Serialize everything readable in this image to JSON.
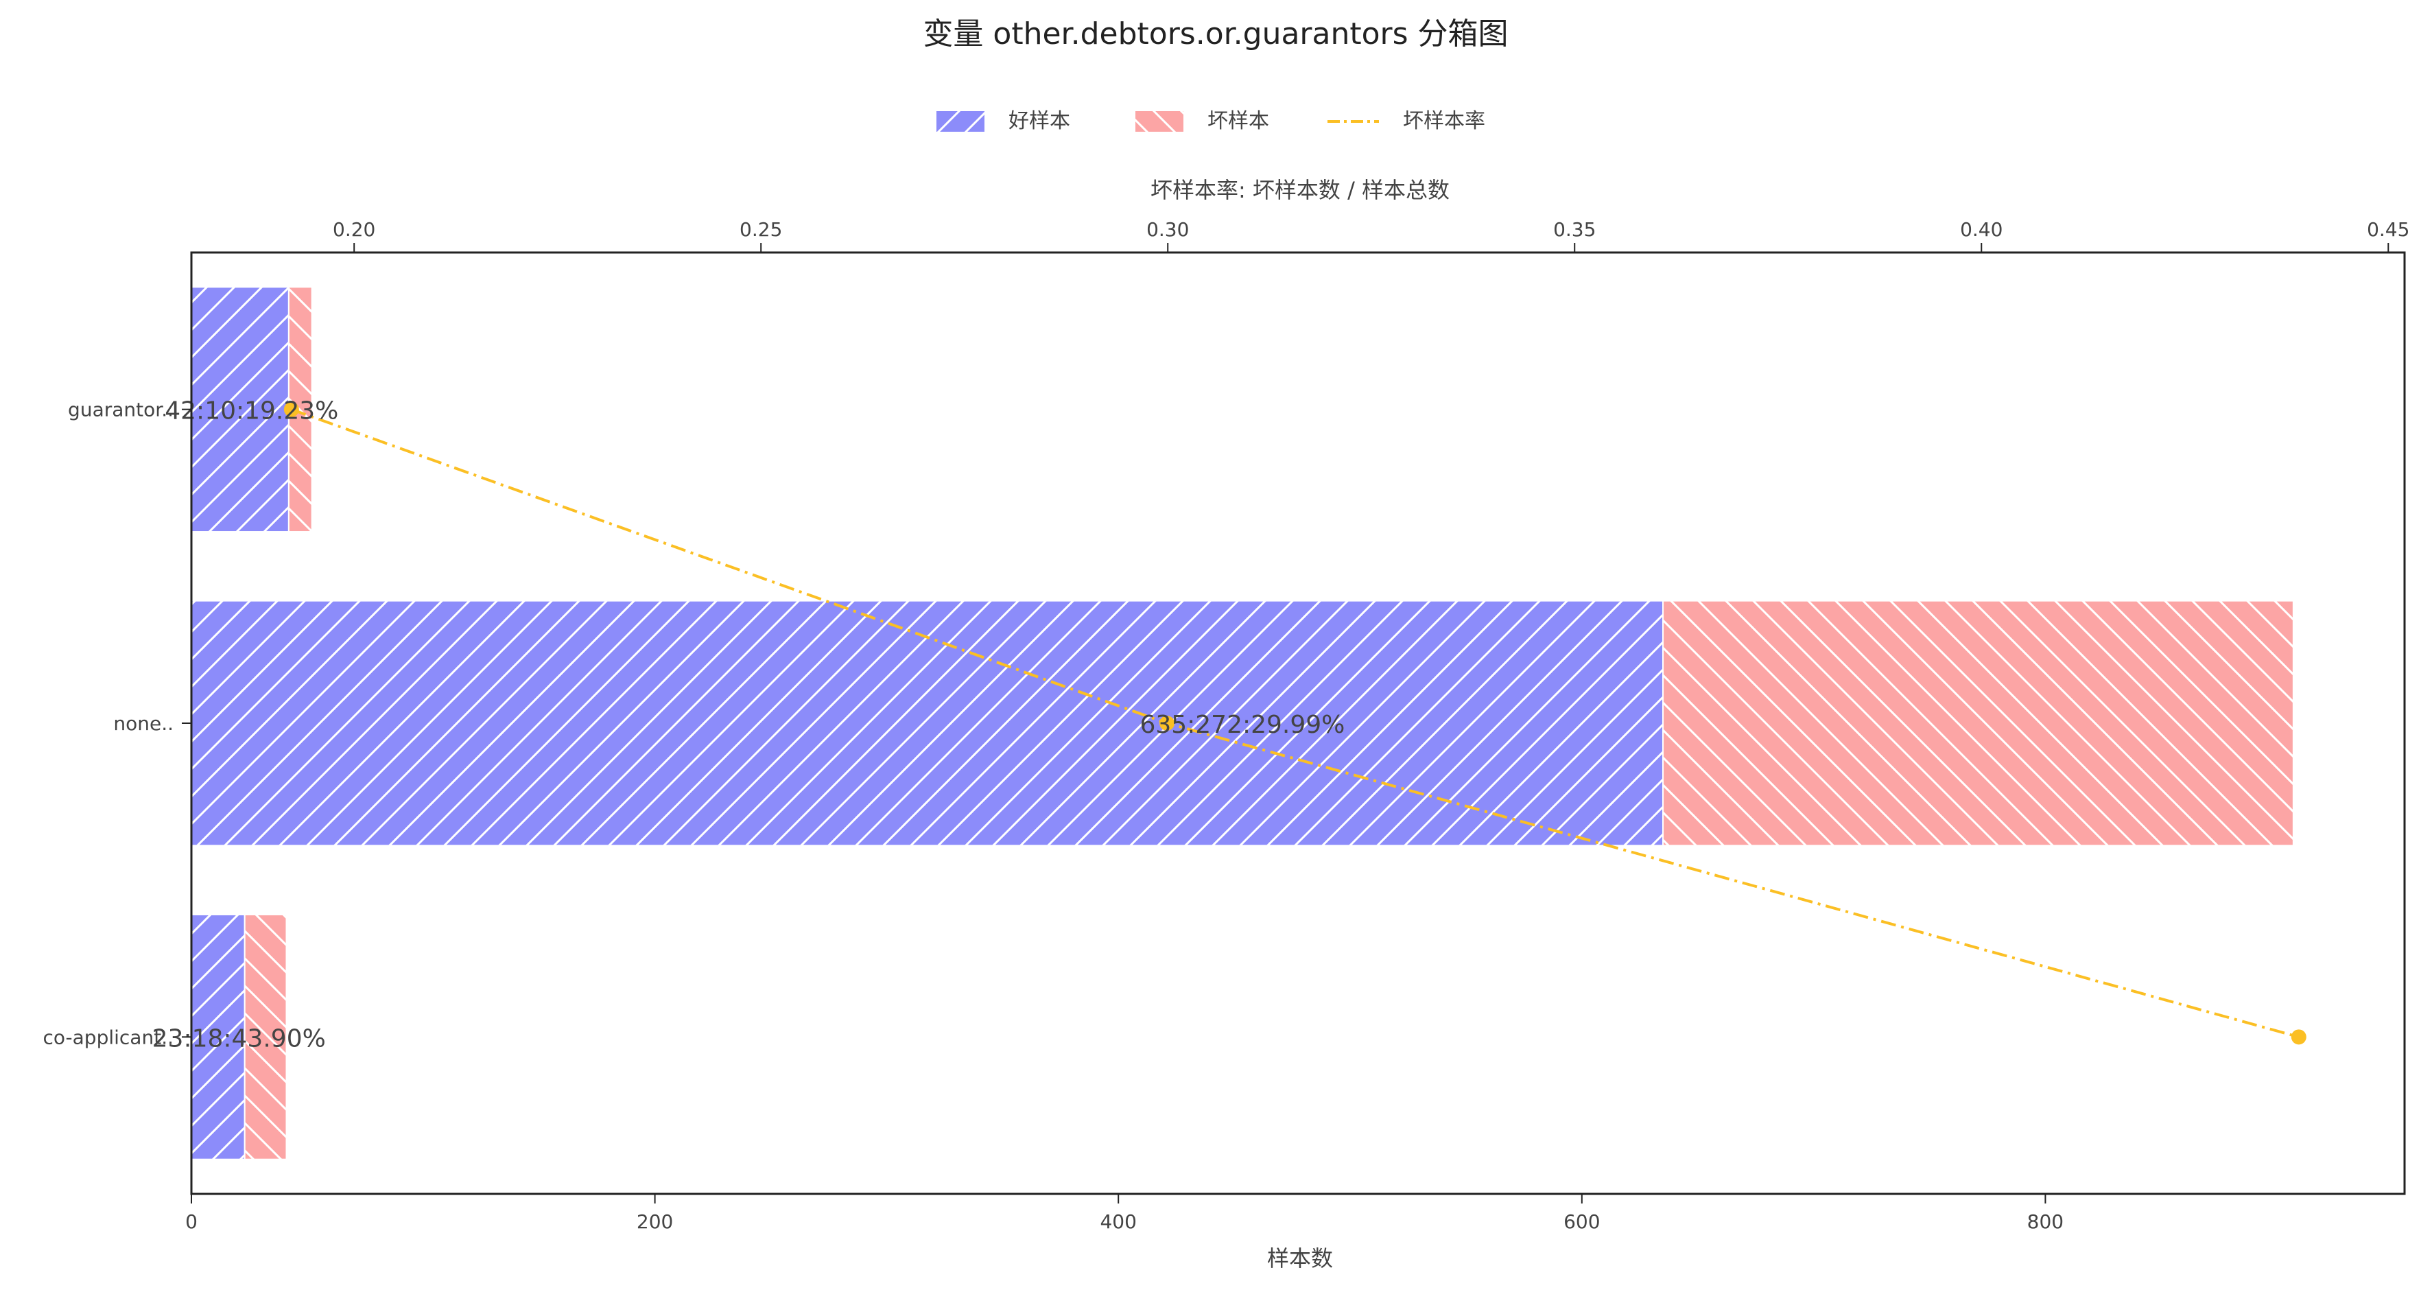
{
  "chart_data": {
    "type": "bar",
    "orientation": "horizontal",
    "stacked": true,
    "title": "变量 other.debtors.or.guarantors 分箱图",
    "categories": [
      "guarantor..",
      "none..",
      "co-applicant.."
    ],
    "series": [
      {
        "name": "好样本",
        "values": [
          42,
          635,
          23
        ],
        "color": "#8c8cfa",
        "hatch": "/"
      },
      {
        "name": "坏样本",
        "values": [
          10,
          272,
          18
        ],
        "color": "#fca5a5",
        "hatch": "\\"
      }
    ],
    "rate_series": {
      "name": "坏样本率",
      "values": [
        0.1923,
        0.2999,
        0.439
      ],
      "color": "#fbbf24",
      "style": "dash-dot"
    },
    "data_labels": [
      "42:10:19.23%",
      "635:272:29.99%",
      "23:18:43.90%"
    ],
    "xlabel": "样本数",
    "xlim": [
      0,
      955
    ],
    "xticks": [
      0,
      200,
      400,
      600,
      800
    ],
    "xtick_labels": [
      "0",
      "200",
      "400",
      "600",
      "800"
    ],
    "x2label": "坏样本率: 坏样本数 / 样本总数",
    "x2lim": [
      0.18,
      0.452
    ],
    "x2ticks": [
      0.2,
      0.25,
      0.3,
      0.35,
      0.4,
      0.45
    ],
    "x2tick_labels": [
      "0.20",
      "0.25",
      "0.30",
      "0.35",
      "0.40",
      "0.45"
    ],
    "legend_position": "top-center",
    "grid": false
  }
}
